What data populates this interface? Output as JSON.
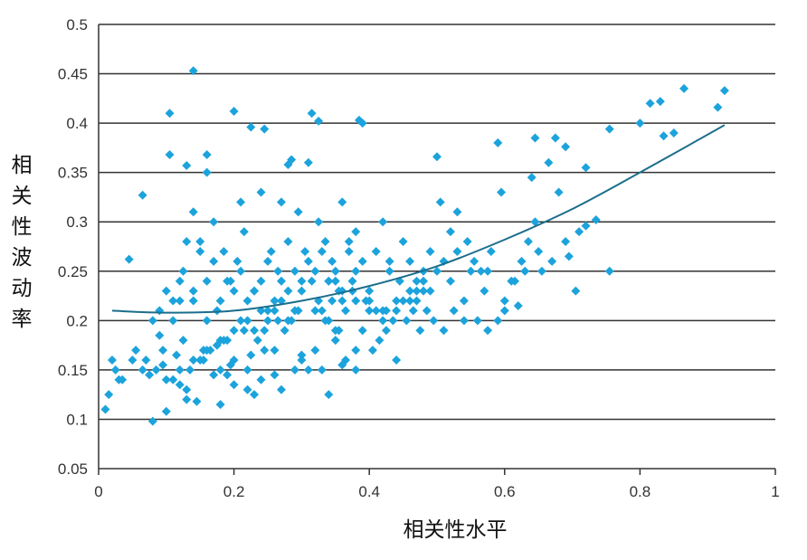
{
  "chart_data": {
    "type": "scatter",
    "title": "",
    "xlabel": "相关性水平",
    "ylabel": "相关性波动率",
    "xlim": [
      0,
      1
    ],
    "ylim": [
      0.05,
      0.5
    ],
    "xticks": [
      "0",
      "0.2",
      "0.4",
      "0.6",
      "0.8",
      "1"
    ],
    "yticks": [
      "0.05",
      "0.1",
      "0.15",
      "0.2",
      "0.25",
      "0.3",
      "0.35",
      "0.4",
      "0.45",
      "0.5"
    ],
    "grid": "horizontal",
    "colors": {
      "points": "#1ca3dc",
      "trend": "#1b6e8c",
      "grid": "#333333"
    },
    "trend": {
      "x": [
        0.02,
        0.1,
        0.2,
        0.3,
        0.4,
        0.5,
        0.6,
        0.7,
        0.8,
        0.925
      ],
      "y": [
        0.21,
        0.208,
        0.21,
        0.22,
        0.235,
        0.255,
        0.282,
        0.313,
        0.35,
        0.398
      ]
    },
    "series": [
      {
        "x": [
          0.14,
          0.105,
          0.2,
          0.315,
          0.325,
          0.385,
          0.39,
          0.225,
          0.245,
          0.105,
          0.13,
          0.16,
          0.16,
          0.065,
          0.21,
          0.285,
          0.28,
          0.31,
          0.5,
          0.59,
          0.645,
          0.675,
          0.69,
          0.72,
          0.64,
          0.8,
          0.815,
          0.83,
          0.865,
          0.915,
          0.925,
          0.85,
          0.835,
          0.755,
          0.735,
          0.72,
          0.705,
          0.695,
          0.755,
          0.08,
          0.1,
          0.045,
          0.02,
          0.03,
          0.015,
          0.01,
          0.09,
          0.08,
          0.12,
          0.125,
          0.14,
          0.15,
          0.17,
          0.185,
          0.195,
          0.205,
          0.215,
          0.23,
          0.24,
          0.25,
          0.255,
          0.265,
          0.27,
          0.28,
          0.295,
          0.305,
          0.315,
          0.325,
          0.335,
          0.345,
          0.355,
          0.36,
          0.37,
          0.375,
          0.38,
          0.395,
          0.41,
          0.42,
          0.43,
          0.445,
          0.45,
          0.46,
          0.47,
          0.48,
          0.49,
          0.505,
          0.52,
          0.53,
          0.545,
          0.555,
          0.565,
          0.575,
          0.58,
          0.595,
          0.6,
          0.615,
          0.625,
          0.635,
          0.645,
          0.655,
          0.665,
          0.68,
          0.59,
          0.62,
          0.055,
          0.07,
          0.09,
          0.11,
          0.13,
          0.15,
          0.165,
          0.18,
          0.2,
          0.22,
          0.235,
          0.26,
          0.275,
          0.29,
          0.3,
          0.32,
          0.33,
          0.35,
          0.365,
          0.38,
          0.39,
          0.405,
          0.415,
          0.425,
          0.435,
          0.455,
          0.465,
          0.475,
          0.485,
          0.495,
          0.51,
          0.525,
          0.54,
          0.56,
          0.575,
          0.23,
          0.27,
          0.18,
          0.13,
          0.34,
          0.44,
          0.24,
          0.19,
          0.31,
          0.22,
          0.145,
          0.36,
          0.12,
          0.26,
          0.38,
          0.17,
          0.3,
          0.2,
          0.25,
          0.34,
          0.11,
          0.16,
          0.29,
          0.23,
          0.21,
          0.33,
          0.19,
          0.27,
          0.35,
          0.41,
          0.1,
          0.14,
          0.175,
          0.245,
          0.285,
          0.325,
          0.365,
          0.4,
          0.45,
          0.48,
          0.5,
          0.095,
          0.125,
          0.155,
          0.185,
          0.215,
          0.265,
          0.295,
          0.345,
          0.375,
          0.425,
          0.47,
          0.35,
          0.4,
          0.42,
          0.46,
          0.22,
          0.24,
          0.26,
          0.28,
          0.3,
          0.32,
          0.34,
          0.36,
          0.38,
          0.17,
          0.19,
          0.21,
          0.23,
          0.25,
          0.27,
          0.29,
          0.31,
          0.33,
          0.35,
          0.37,
          0.39,
          0.13,
          0.15,
          0.11,
          0.12,
          0.14,
          0.16,
          0.18,
          0.2,
          0.085,
          0.065,
          0.035,
          0.025,
          0.05,
          0.075,
          0.095,
          0.115,
          0.135,
          0.155,
          0.175,
          0.195,
          0.225,
          0.245,
          0.335,
          0.355,
          0.43,
          0.44,
          0.47,
          0.49,
          0.51,
          0.53,
          0.55,
          0.61,
          0.63,
          0.65,
          0.67,
          0.69,
          0.71,
          0.6,
          0.57,
          0.54,
          0.52,
          0.48,
          0.46,
          0.44,
          0.42,
          0.4,
          0.38,
          0.36,
          0.34,
          0.32,
          0.3,
          0.28,
          0.26,
          0.24,
          0.22,
          0.2,
          0.18,
          0.16,
          0.14,
          0.12,
          0.1
        ],
        "y": [
          0.453,
          0.41,
          0.412,
          0.41,
          0.402,
          0.403,
          0.4,
          0.396,
          0.394,
          0.368,
          0.357,
          0.368,
          0.35,
          0.327,
          0.32,
          0.363,
          0.358,
          0.36,
          0.366,
          0.38,
          0.385,
          0.385,
          0.376,
          0.355,
          0.345,
          0.4,
          0.42,
          0.422,
          0.435,
          0.416,
          0.433,
          0.39,
          0.387,
          0.394,
          0.302,
          0.296,
          0.23,
          0.265,
          0.25,
          0.098,
          0.108,
          0.262,
          0.16,
          0.14,
          0.125,
          0.11,
          0.21,
          0.2,
          0.22,
          0.25,
          0.31,
          0.28,
          0.3,
          0.27,
          0.24,
          0.26,
          0.29,
          0.23,
          0.33,
          0.21,
          0.27,
          0.25,
          0.32,
          0.28,
          0.31,
          0.27,
          0.24,
          0.3,
          0.28,
          0.26,
          0.23,
          0.32,
          0.27,
          0.24,
          0.29,
          0.22,
          0.27,
          0.3,
          0.26,
          0.24,
          0.28,
          0.26,
          0.23,
          0.25,
          0.27,
          0.32,
          0.29,
          0.31,
          0.28,
          0.26,
          0.25,
          0.25,
          0.27,
          0.33,
          0.22,
          0.24,
          0.26,
          0.28,
          0.3,
          0.25,
          0.36,
          0.33,
          0.2,
          0.215,
          0.17,
          0.16,
          0.185,
          0.14,
          0.13,
          0.16,
          0.17,
          0.15,
          0.16,
          0.15,
          0.18,
          0.17,
          0.19,
          0.15,
          0.16,
          0.17,
          0.15,
          0.18,
          0.16,
          0.17,
          0.19,
          0.17,
          0.18,
          0.19,
          0.2,
          0.2,
          0.21,
          0.19,
          0.21,
          0.2,
          0.19,
          0.21,
          0.2,
          0.2,
          0.19,
          0.125,
          0.13,
          0.115,
          0.12,
          0.125,
          0.16,
          0.14,
          0.145,
          0.15,
          0.13,
          0.118,
          0.155,
          0.135,
          0.145,
          0.15,
          0.145,
          0.165,
          0.135,
          0.2,
          0.2,
          0.2,
          0.2,
          0.21,
          0.19,
          0.2,
          0.21,
          0.18,
          0.22,
          0.19,
          0.21,
          0.23,
          0.22,
          0.21,
          0.19,
          0.2,
          0.22,
          0.21,
          0.23,
          0.22,
          0.24,
          0.25,
          0.17,
          0.18,
          0.17,
          0.18,
          0.19,
          0.2,
          0.21,
          0.22,
          0.23,
          0.21,
          0.22,
          0.24,
          0.22,
          0.21,
          0.23,
          0.22,
          0.24,
          0.21,
          0.2,
          0.23,
          0.21,
          0.24,
          0.22,
          0.25,
          0.26,
          0.24,
          0.25,
          0.23,
          0.26,
          0.24,
          0.25,
          0.26,
          0.27,
          0.25,
          0.28,
          0.26,
          0.28,
          0.27,
          0.22,
          0.24,
          0.23,
          0.24,
          0.22,
          0.23,
          0.15,
          0.15,
          0.14,
          0.15,
          0.16,
          0.145,
          0.155,
          0.165,
          0.15,
          0.16,
          0.175,
          0.155,
          0.165,
          0.17,
          0.2,
          0.19,
          0.25,
          0.22,
          0.24,
          0.23,
          0.26,
          0.27,
          0.25,
          0.24,
          0.25,
          0.27,
          0.26,
          0.28,
          0.29,
          0.21,
          0.23,
          0.22,
          0.24,
          0.23,
          0.22,
          0.21,
          0.2,
          0.21,
          0.22,
          0.23,
          0.24,
          0.25,
          0.24,
          0.23,
          0.22,
          0.21,
          0.2,
          0.19,
          0.18,
          0.17,
          0.16,
          0.15,
          0.14
        ]
      }
    ]
  }
}
